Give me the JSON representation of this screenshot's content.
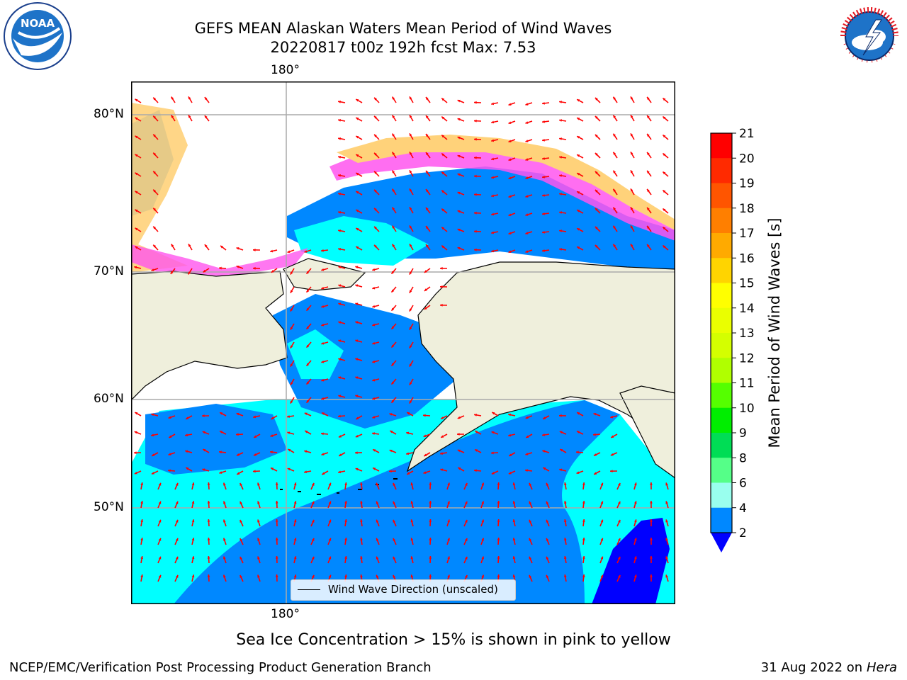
{
  "header": {
    "title_line1": "GEFS MEAN Alaskan Waters Mean Period of Wind Waves",
    "title_line2": "20220817 t00z 192h fcst   Max: 7.53"
  },
  "logos": {
    "noara": "NOAA",
    "noaa_ring": "NATIONAL OCEANIC AND ATMOSPHERIC ADMINISTRATION · U.S. DEPARTMENT OF COMMERCE",
    "nws_ring": "NATIONAL WEATHER SERVICE"
  },
  "map": {
    "lon_label_top": "180°",
    "lon_label_bottom": "180°",
    "lat_labels": [
      "80°N",
      "70°N",
      "60°N",
      "50°N"
    ],
    "legend_label": "Wind Wave Direction (unscaled)",
    "land_color": "#efefdc",
    "arrow_color": "#ff0000"
  },
  "colorbar": {
    "label": "Mean Period of Wind Waves [s]",
    "ticks": [
      "21",
      "20",
      "19",
      "18",
      "17",
      "16",
      "15",
      "14",
      "13",
      "12",
      "11",
      "10",
      "9",
      "8",
      "6",
      "4",
      "2"
    ],
    "colors": [
      "#ff0000",
      "#ff2a00",
      "#ff5500",
      "#ff7f00",
      "#ffaa00",
      "#ffd400",
      "#ffff00",
      "#eaff00",
      "#d4ff00",
      "#b0ff00",
      "#55ff00",
      "#00ee00",
      "#00dd55",
      "#55ff88",
      "#99ffee",
      "#44ffee",
      "#00ffff",
      "#0088ff"
    ],
    "under_color": "#0000ff"
  },
  "subtitle": "Sea Ice Concentration > 15% is shown in pink to yellow",
  "footer": {
    "left": "NCEP/EMC/Verification Post Processing Product Generation Branch",
    "right_date": "31 Aug 2022 on",
    "right_machine": "Hera"
  }
}
